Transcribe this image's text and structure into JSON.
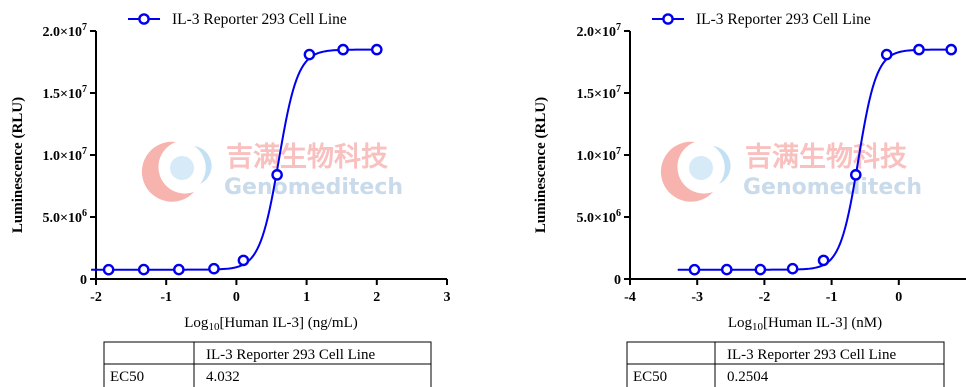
{
  "chart_data": [
    {
      "type": "line",
      "ylabel": "Luminescence (RLU)",
      "xlabel": "Log10[Human IL-3] (ng/mL)",
      "xlabel_prefix": "Log",
      "xlabel_sub": "10",
      "xlabel_rest": "[Human IL-3] (ng/mL)",
      "xlim": [
        -2,
        3
      ],
      "ylim": [
        0,
        20000000
      ],
      "x_ticks": [
        -2,
        -1,
        0,
        1,
        2,
        3
      ],
      "x_tick_labels": [
        "-2",
        "-1",
        "0",
        "1",
        "2",
        "3"
      ],
      "y_ticks": [
        0,
        5000000,
        10000000,
        15000000,
        20000000
      ],
      "y_tick_labels": [
        {
          "base": "0",
          "exp": ""
        },
        {
          "base": "5.0×10",
          "exp": "6"
        },
        {
          "base": "1.0×10",
          "exp": "7"
        },
        {
          "base": "1.5×10",
          "exp": "7"
        },
        {
          "base": "2.0×10",
          "exp": "7"
        }
      ],
      "legend": "top-center",
      "series": [
        {
          "name": "IL-3 Reporter 293 Cell Line",
          "color": "#0000ee",
          "points": [
            {
              "x": -1.82,
              "y": 750000
            },
            {
              "x": -1.32,
              "y": 760000
            },
            {
              "x": -0.82,
              "y": 760000
            },
            {
              "x": -0.32,
              "y": 830000
            },
            {
              "x": 0.1,
              "y": 1500000
            },
            {
              "x": 0.58,
              "y": 8400000
            },
            {
              "x": 1.04,
              "y": 18100000
            },
            {
              "x": 1.52,
              "y": 18500000
            },
            {
              "x": 2.0,
              "y": 18500000
            }
          ],
          "fit": {
            "bottom": 750000,
            "top": 18500000,
            "log_ec50": 0.6055,
            "hill": 3.2
          }
        }
      ],
      "table": {
        "header": [
          "",
          "IL-3 Reporter 293 Cell Line"
        ],
        "rows": [
          [
            "EC50",
            "4.032"
          ]
        ]
      }
    },
    {
      "type": "line",
      "ylabel": "Luminescence (RLU)",
      "xlabel": "Log10[Human IL-3] (nM)",
      "xlabel_prefix": "Log",
      "xlabel_sub": "10",
      "xlabel_rest": "[Human IL-3] (nM)",
      "xlim": [
        -4,
        1
      ],
      "ylim": [
        0,
        20000000
      ],
      "x_ticks": [
        -4,
        -3,
        -2,
        -1,
        0
      ],
      "x_tick_labels": [
        "-4",
        "-3",
        "-2",
        "-1",
        "0"
      ],
      "y_ticks": [
        0,
        5000000,
        10000000,
        15000000,
        20000000
      ],
      "y_tick_labels": [
        {
          "base": "0",
          "exp": ""
        },
        {
          "base": "5.0×10",
          "exp": "6"
        },
        {
          "base": "1.0×10",
          "exp": "7"
        },
        {
          "base": "1.5×10",
          "exp": "7"
        },
        {
          "base": "2.0×10",
          "exp": "7"
        }
      ],
      "legend": "top-center",
      "series": [
        {
          "name": "IL-3 Reporter 293 Cell Line",
          "color": "#0000ee",
          "points": [
            {
              "x": -3.04,
              "y": 750000
            },
            {
              "x": -2.56,
              "y": 760000
            },
            {
              "x": -2.06,
              "y": 760000
            },
            {
              "x": -1.58,
              "y": 830000
            },
            {
              "x": -1.12,
              "y": 1500000
            },
            {
              "x": -0.64,
              "y": 8400000
            },
            {
              "x": -0.18,
              "y": 18100000
            },
            {
              "x": 0.3,
              "y": 18500000
            },
            {
              "x": 0.78,
              "y": 18500000
            }
          ],
          "fit": {
            "bottom": 750000,
            "top": 18500000,
            "log_ec50": -0.6014,
            "hill": 3.2
          }
        }
      ],
      "table": {
        "header": [
          "",
          "IL-3 Reporter 293 Cell Line"
        ],
        "rows": [
          [
            "EC50",
            "0.2504"
          ]
        ]
      }
    }
  ],
  "watermark": {
    "cn": "吉满生物科技",
    "en": "Genomeditech",
    "colors": {
      "cn": "#ef6b66",
      "en": "#7fa9cf",
      "logo_red": "#ee4c3f",
      "logo_blue": "#74b7e6"
    }
  }
}
